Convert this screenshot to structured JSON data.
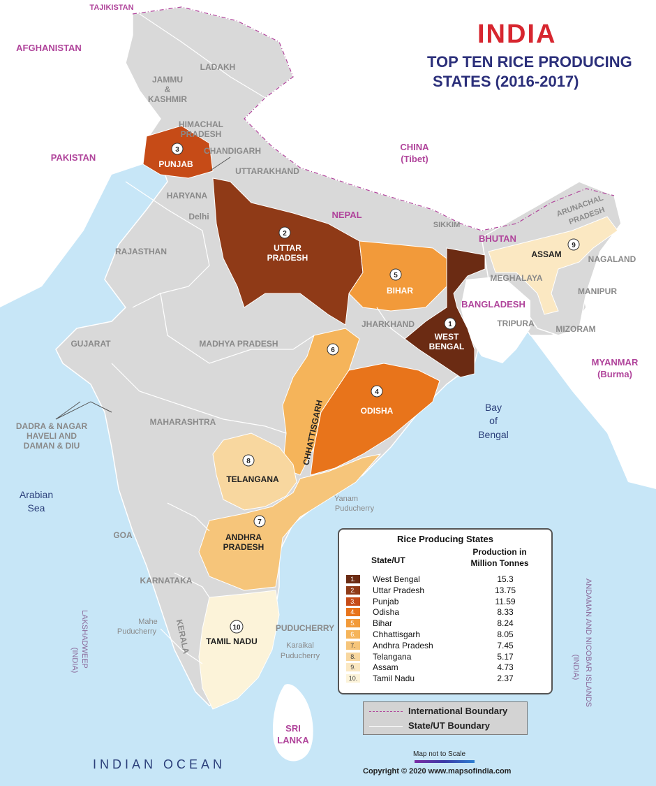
{
  "title": {
    "line1": "INDIA",
    "line2": "TOP TEN RICE PRODUCING",
    "line3": "STATES (2016-2017)"
  },
  "colors": {
    "sea": "#c7e6f7",
    "land": "#d9d9d9",
    "country_label": "#b0449b",
    "title_red": "#d7262f",
    "title_blue": "#2b2f7a",
    "rank_1": "#6b2b13",
    "rank_2": "#8f3a17",
    "rank_3": "#c64b17",
    "rank_4": "#e8741b",
    "rank_5": "#f29a3a",
    "rank_6": "#f5b45a",
    "rank_7": "#f6c57a",
    "rank_8": "#f8d79f",
    "rank_9": "#fbe8c2",
    "rank_10": "#fcf3d9"
  },
  "countries": {
    "tajikistan": "TAJIKISTAN",
    "afghanistan": "AFGHANISTAN",
    "pakistan": "PAKISTAN",
    "china": "CHINA",
    "china_sub": "(Tibet)",
    "nepal": "NEPAL",
    "bhutan": "BHUTAN",
    "bangladesh": "BANGLADESH",
    "myanmar": "MYANMAR",
    "myanmar_sub": "(Burma)",
    "sri_lanka_1": "SRI",
    "sri_lanka_2": "LANKA"
  },
  "water": {
    "arabian_1": "Arabian",
    "arabian_2": "Sea",
    "bay_1": "Bay",
    "bay_2": "of",
    "bay_3": "Bengal",
    "indian_ocean": "INDIAN OCEAN",
    "lakshadweep": "LAKSHADWEEP",
    "lakshadweep_sub": "(INDIA)",
    "andaman": "ANDAMAN AND NICOBAR ISLANDS",
    "andaman_sub": "(INDIA)"
  },
  "states": {
    "jammu_1": "JAMMU",
    "jammu_2": "&",
    "jammu_3": "KASHMIR",
    "ladakh": "LADAKH",
    "himachal_1": "HIMACHAL",
    "himachal_2": "PRADESH",
    "chandigarh": "CHANDIGARH",
    "punjab": "PUNJAB",
    "uttarakhand": "UTTARAKHAND",
    "haryana": "HARYANA",
    "delhi": "Delhi",
    "rajasthan": "RAJASTHAN",
    "up_1": "UTTAR",
    "up_2": "PRADESH",
    "bihar": "BIHAR",
    "sikkim": "SIKKIM",
    "arunachal_1": "ARUNACHAL",
    "arunachal_2": "PRADESH",
    "assam": "ASSAM",
    "nagaland": "NAGALAND",
    "meghalaya": "MEGHALAYA",
    "manipur": "MANIPUR",
    "tripura": "TRIPURA",
    "mizoram": "MIZORAM",
    "jharkhand": "JHARKHAND",
    "wb_1": "WEST",
    "wb_2": "BENGAL",
    "gujarat": "GUJARAT",
    "mp": "MADHYA PRADESH",
    "chhattisgarh": "CHHATTISGARH",
    "odisha": "ODISHA",
    "dadra_1": "DADRA & NAGAR",
    "dadra_2": "HAVELI AND",
    "dadra_3": "DAMAN & DIU",
    "maharashtra": "MAHARASHTRA",
    "telangana": "TELANGANA",
    "yanam_1": "Yanam",
    "yanam_2": "Puducherry",
    "goa": "GOA",
    "ap_1": "ANDHRA",
    "ap_2": "PRADESH",
    "karnataka": "KARNATAKA",
    "mahe_1": "Mahe",
    "mahe_2": "Puducherry",
    "puducherry": "PUDUCHERRY",
    "tamil_nadu": "TAMIL NADU",
    "karaikal_1": "Karaikal",
    "karaikal_2": "Puducherry",
    "kerala": "KERALA"
  },
  "ranks": [
    "1",
    "2",
    "3",
    "4",
    "5",
    "6",
    "7",
    "8",
    "9",
    "10"
  ],
  "legend": {
    "title": "Rice Producing States",
    "col_state": "State/UT",
    "col_prod_1": "Production in",
    "col_prod_2": "Million Tonnes",
    "rows": [
      {
        "rank": "1.",
        "state": "West Bengal",
        "value": "15.3"
      },
      {
        "rank": "2.",
        "state": "Uttar Pradesh",
        "value": "13.75"
      },
      {
        "rank": "3.",
        "state": "Punjab",
        "value": "11.59"
      },
      {
        "rank": "4.",
        "state": "Odisha",
        "value": "8.33"
      },
      {
        "rank": "5.",
        "state": "Bihar",
        "value": "8.24"
      },
      {
        "rank": "6.",
        "state": "Chhattisgarh",
        "value": "8.05"
      },
      {
        "rank": "7.",
        "state": "Andhra Pradesh",
        "value": "7.45"
      },
      {
        "rank": "8.",
        "state": "Telangana",
        "value": "5.17"
      },
      {
        "rank": "9.",
        "state": "Assam",
        "value": "4.73"
      },
      {
        "rank": "10.",
        "state": "Tamil Nadu",
        "value": "2.37"
      }
    ]
  },
  "boundary_legend": {
    "international": "International Boundary",
    "state": "State/UT Boundary"
  },
  "footer": {
    "scale_note": "Map not to Scale",
    "copyright": "Copyright © 2020 www.mapsofindia.com"
  }
}
